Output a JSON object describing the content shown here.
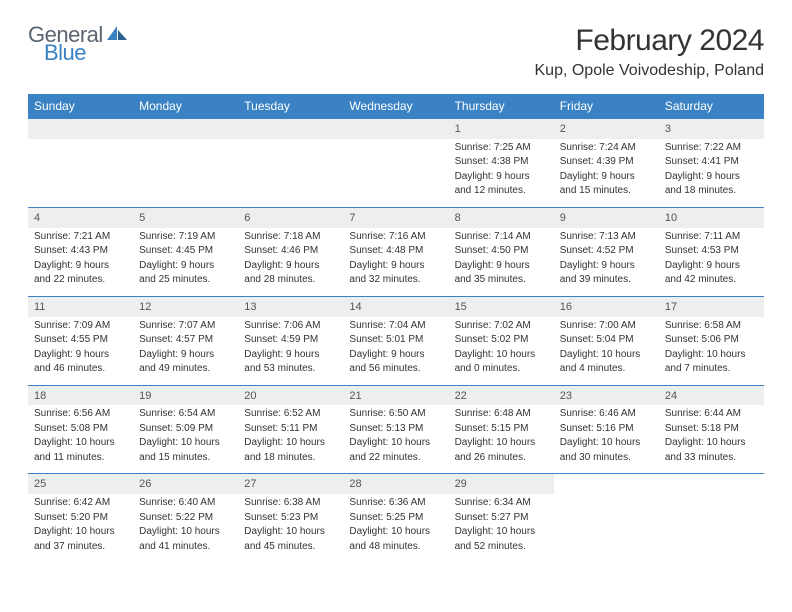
{
  "logo": {
    "text1": "General",
    "text2": "Blue"
  },
  "title": "February 2024",
  "location": "Kup, Opole Voivodeship, Poland",
  "colors": {
    "header_bg": "#3b82c4",
    "header_fg": "#ffffff",
    "daynum_bg": "#eceeef",
    "row_border": "#3b82c4"
  },
  "weekdays": [
    "Sunday",
    "Monday",
    "Tuesday",
    "Wednesday",
    "Thursday",
    "Friday",
    "Saturday"
  ],
  "weeks": [
    [
      null,
      null,
      null,
      null,
      {
        "n": "1",
        "sr": "Sunrise: 7:25 AM",
        "ss": "Sunset: 4:38 PM",
        "d1": "Daylight: 9 hours",
        "d2": "and 12 minutes."
      },
      {
        "n": "2",
        "sr": "Sunrise: 7:24 AM",
        "ss": "Sunset: 4:39 PM",
        "d1": "Daylight: 9 hours",
        "d2": "and 15 minutes."
      },
      {
        "n": "3",
        "sr": "Sunrise: 7:22 AM",
        "ss": "Sunset: 4:41 PM",
        "d1": "Daylight: 9 hours",
        "d2": "and 18 minutes."
      }
    ],
    [
      {
        "n": "4",
        "sr": "Sunrise: 7:21 AM",
        "ss": "Sunset: 4:43 PM",
        "d1": "Daylight: 9 hours",
        "d2": "and 22 minutes."
      },
      {
        "n": "5",
        "sr": "Sunrise: 7:19 AM",
        "ss": "Sunset: 4:45 PM",
        "d1": "Daylight: 9 hours",
        "d2": "and 25 minutes."
      },
      {
        "n": "6",
        "sr": "Sunrise: 7:18 AM",
        "ss": "Sunset: 4:46 PM",
        "d1": "Daylight: 9 hours",
        "d2": "and 28 minutes."
      },
      {
        "n": "7",
        "sr": "Sunrise: 7:16 AM",
        "ss": "Sunset: 4:48 PM",
        "d1": "Daylight: 9 hours",
        "d2": "and 32 minutes."
      },
      {
        "n": "8",
        "sr": "Sunrise: 7:14 AM",
        "ss": "Sunset: 4:50 PM",
        "d1": "Daylight: 9 hours",
        "d2": "and 35 minutes."
      },
      {
        "n": "9",
        "sr": "Sunrise: 7:13 AM",
        "ss": "Sunset: 4:52 PM",
        "d1": "Daylight: 9 hours",
        "d2": "and 39 minutes."
      },
      {
        "n": "10",
        "sr": "Sunrise: 7:11 AM",
        "ss": "Sunset: 4:53 PM",
        "d1": "Daylight: 9 hours",
        "d2": "and 42 minutes."
      }
    ],
    [
      {
        "n": "11",
        "sr": "Sunrise: 7:09 AM",
        "ss": "Sunset: 4:55 PM",
        "d1": "Daylight: 9 hours",
        "d2": "and 46 minutes."
      },
      {
        "n": "12",
        "sr": "Sunrise: 7:07 AM",
        "ss": "Sunset: 4:57 PM",
        "d1": "Daylight: 9 hours",
        "d2": "and 49 minutes."
      },
      {
        "n": "13",
        "sr": "Sunrise: 7:06 AM",
        "ss": "Sunset: 4:59 PM",
        "d1": "Daylight: 9 hours",
        "d2": "and 53 minutes."
      },
      {
        "n": "14",
        "sr": "Sunrise: 7:04 AM",
        "ss": "Sunset: 5:01 PM",
        "d1": "Daylight: 9 hours",
        "d2": "and 56 minutes."
      },
      {
        "n": "15",
        "sr": "Sunrise: 7:02 AM",
        "ss": "Sunset: 5:02 PM",
        "d1": "Daylight: 10 hours",
        "d2": "and 0 minutes."
      },
      {
        "n": "16",
        "sr": "Sunrise: 7:00 AM",
        "ss": "Sunset: 5:04 PM",
        "d1": "Daylight: 10 hours",
        "d2": "and 4 minutes."
      },
      {
        "n": "17",
        "sr": "Sunrise: 6:58 AM",
        "ss": "Sunset: 5:06 PM",
        "d1": "Daylight: 10 hours",
        "d2": "and 7 minutes."
      }
    ],
    [
      {
        "n": "18",
        "sr": "Sunrise: 6:56 AM",
        "ss": "Sunset: 5:08 PM",
        "d1": "Daylight: 10 hours",
        "d2": "and 11 minutes."
      },
      {
        "n": "19",
        "sr": "Sunrise: 6:54 AM",
        "ss": "Sunset: 5:09 PM",
        "d1": "Daylight: 10 hours",
        "d2": "and 15 minutes."
      },
      {
        "n": "20",
        "sr": "Sunrise: 6:52 AM",
        "ss": "Sunset: 5:11 PM",
        "d1": "Daylight: 10 hours",
        "d2": "and 18 minutes."
      },
      {
        "n": "21",
        "sr": "Sunrise: 6:50 AM",
        "ss": "Sunset: 5:13 PM",
        "d1": "Daylight: 10 hours",
        "d2": "and 22 minutes."
      },
      {
        "n": "22",
        "sr": "Sunrise: 6:48 AM",
        "ss": "Sunset: 5:15 PM",
        "d1": "Daylight: 10 hours",
        "d2": "and 26 minutes."
      },
      {
        "n": "23",
        "sr": "Sunrise: 6:46 AM",
        "ss": "Sunset: 5:16 PM",
        "d1": "Daylight: 10 hours",
        "d2": "and 30 minutes."
      },
      {
        "n": "24",
        "sr": "Sunrise: 6:44 AM",
        "ss": "Sunset: 5:18 PM",
        "d1": "Daylight: 10 hours",
        "d2": "and 33 minutes."
      }
    ],
    [
      {
        "n": "25",
        "sr": "Sunrise: 6:42 AM",
        "ss": "Sunset: 5:20 PM",
        "d1": "Daylight: 10 hours",
        "d2": "and 37 minutes."
      },
      {
        "n": "26",
        "sr": "Sunrise: 6:40 AM",
        "ss": "Sunset: 5:22 PM",
        "d1": "Daylight: 10 hours",
        "d2": "and 41 minutes."
      },
      {
        "n": "27",
        "sr": "Sunrise: 6:38 AM",
        "ss": "Sunset: 5:23 PM",
        "d1": "Daylight: 10 hours",
        "d2": "and 45 minutes."
      },
      {
        "n": "28",
        "sr": "Sunrise: 6:36 AM",
        "ss": "Sunset: 5:25 PM",
        "d1": "Daylight: 10 hours",
        "d2": "and 48 minutes."
      },
      {
        "n": "29",
        "sr": "Sunrise: 6:34 AM",
        "ss": "Sunset: 5:27 PM",
        "d1": "Daylight: 10 hours",
        "d2": "and 52 minutes."
      },
      null,
      null
    ]
  ]
}
